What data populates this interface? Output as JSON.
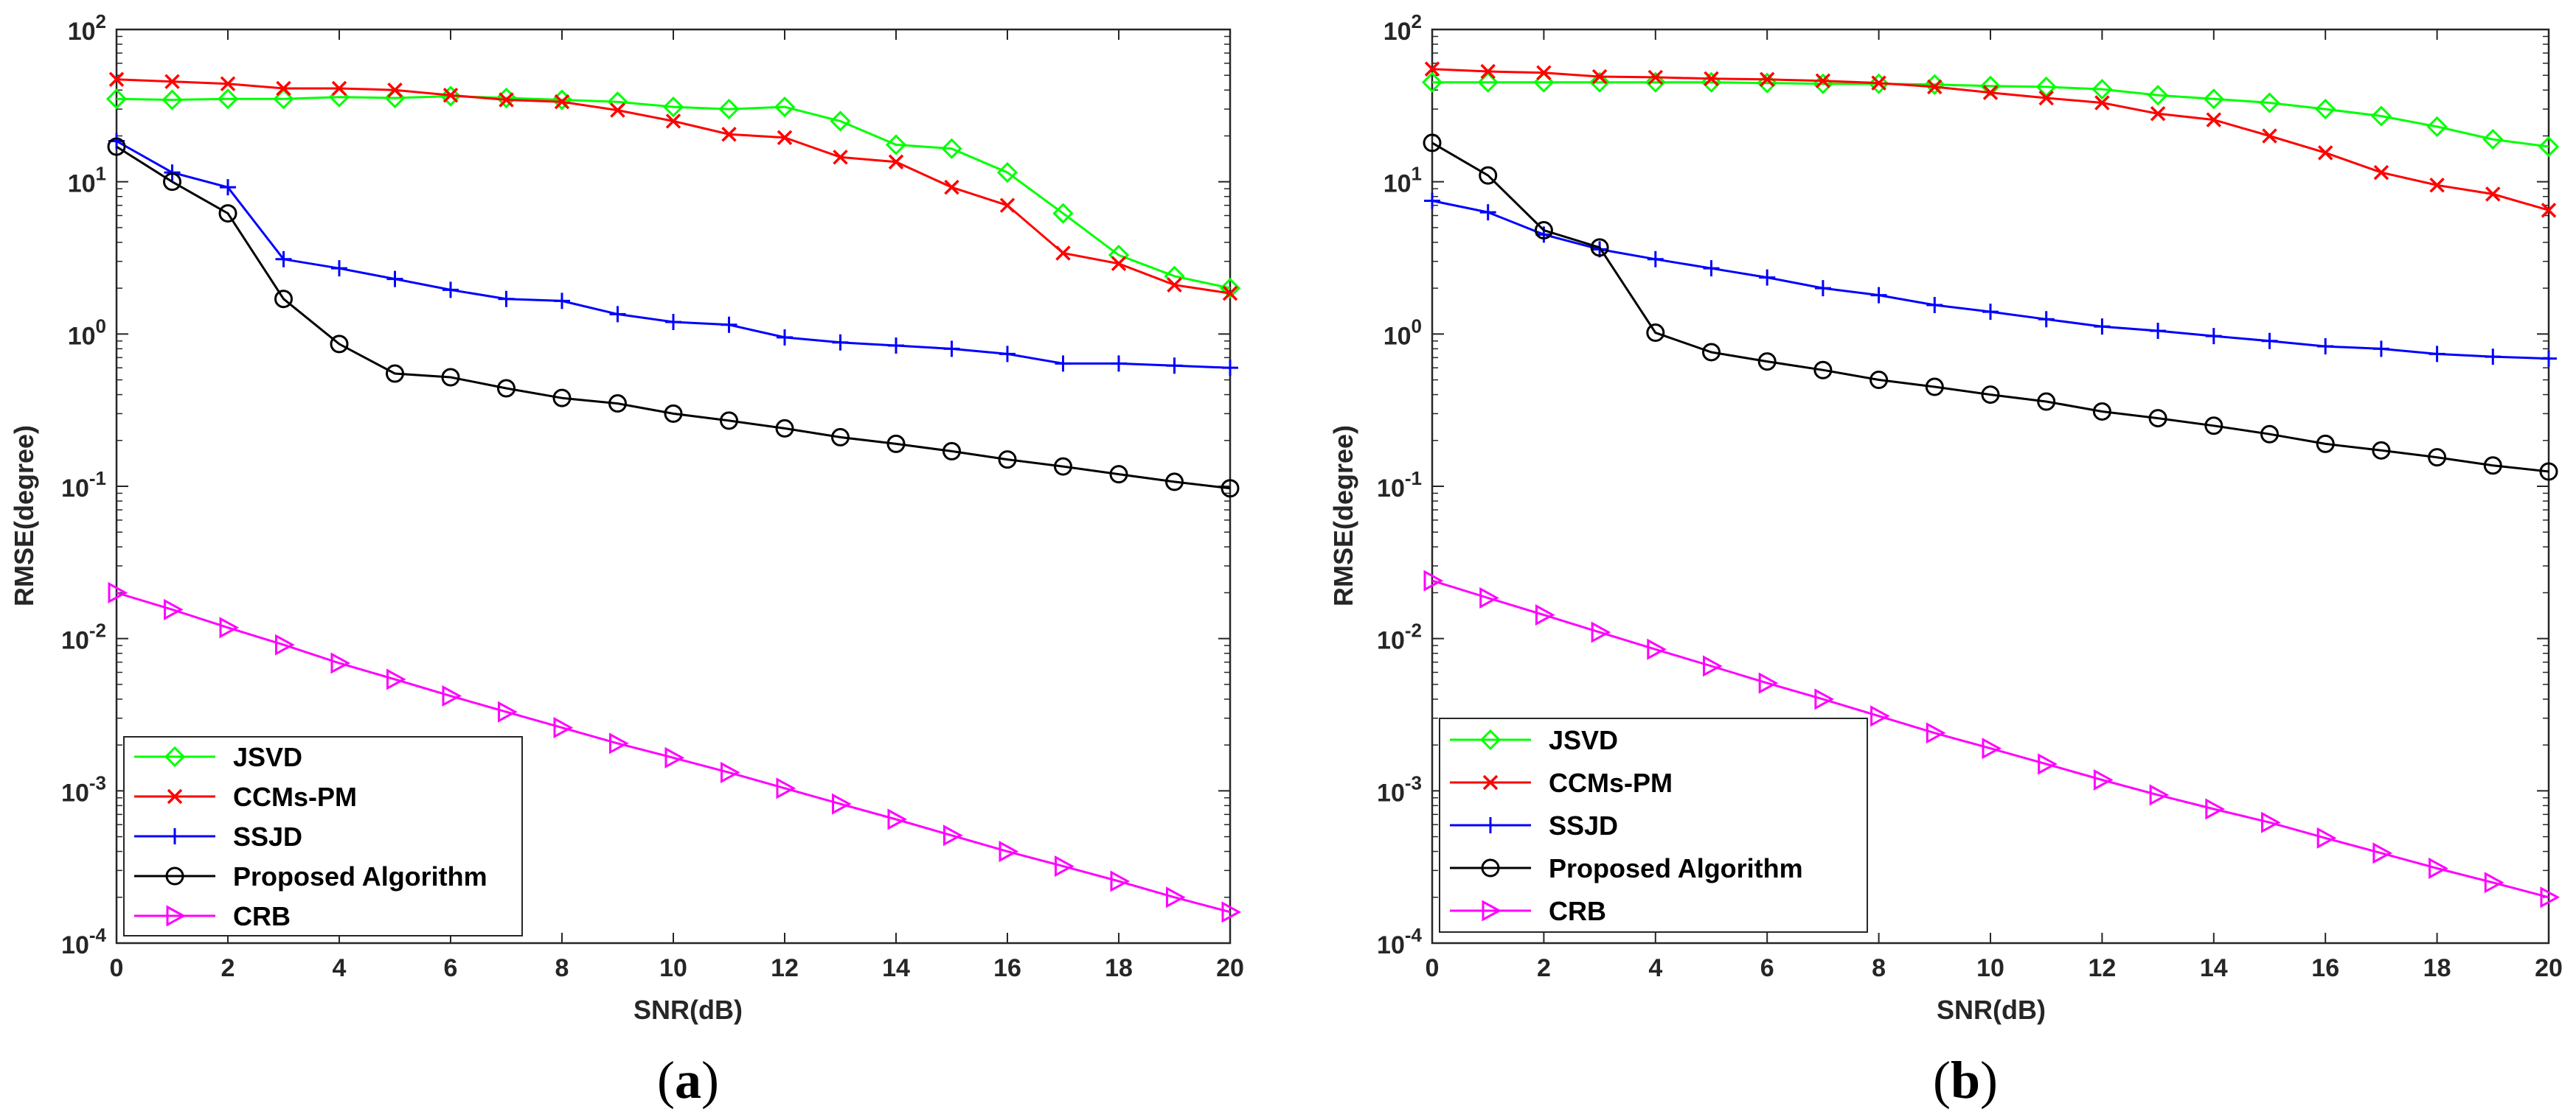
{
  "figure": {
    "panels": [
      "(a)",
      "(b)"
    ]
  },
  "chart_data": [
    {
      "type": "line",
      "panel_label": "a",
      "yscale": "log",
      "xlabel": "SNR(dB)",
      "ylabel": "RMSE(degree)",
      "xlim": [
        0,
        20
      ],
      "ylim": [
        0.0001,
        100
      ],
      "xticks": [
        "0",
        "2",
        "4",
        "6",
        "8",
        "10",
        "12",
        "14",
        "16",
        "18",
        "20"
      ],
      "yticks": [
        {
          "base": "10",
          "exp": "-4"
        },
        {
          "base": "10",
          "exp": "-3"
        },
        {
          "base": "10",
          "exp": "-2"
        },
        {
          "base": "10",
          "exp": "-1"
        },
        {
          "base": "10",
          "exp": "0"
        },
        {
          "base": "10",
          "exp": "1"
        },
        {
          "base": "10",
          "exp": "2"
        }
      ],
      "legend_position": "bottom-left",
      "x": [
        0,
        1,
        2,
        3,
        4,
        5,
        6,
        7,
        8,
        9,
        10,
        11,
        12,
        13,
        14,
        15,
        16,
        17,
        18,
        19,
        20
      ],
      "series": [
        {
          "name": "JSVD",
          "color": "#00ff00",
          "marker": "diamond",
          "values": [
            35,
            34.5,
            35,
            35,
            36,
            35.5,
            36.5,
            35.5,
            34.5,
            33.5,
            31,
            30,
            31,
            25,
            17.5,
            16.5,
            11.5,
            6.2,
            3.3,
            2.4,
            2.0
          ]
        },
        {
          "name": "CCMs-PM",
          "color": "#ff0000",
          "marker": "x",
          "values": [
            47,
            45.5,
            44,
            41,
            41,
            40,
            37,
            34.5,
            33.5,
            29.5,
            25,
            20.5,
            19.5,
            14.5,
            13.5,
            9.2,
            7.0,
            3.4,
            2.9,
            2.1,
            1.85
          ]
        },
        {
          "name": "SSJD",
          "color": "#0000ff",
          "marker": "plus",
          "values": [
            18.5,
            11.5,
            9.2,
            3.1,
            2.7,
            2.3,
            1.95,
            1.7,
            1.65,
            1.35,
            1.2,
            1.15,
            0.95,
            0.88,
            0.84,
            0.8,
            0.74,
            0.64,
            0.64,
            0.62,
            0.6
          ]
        },
        {
          "name": "Proposed Algorithm",
          "color": "#000000",
          "marker": "circle",
          "values": [
            17,
            10,
            6.2,
            1.7,
            0.86,
            0.55,
            0.52,
            0.44,
            0.38,
            0.35,
            0.3,
            0.27,
            0.24,
            0.21,
            0.19,
            0.17,
            0.15,
            0.135,
            0.12,
            0.107,
            0.097
          ]
        },
        {
          "name": "CRB",
          "color": "#ff00ff",
          "marker": "triangle-right",
          "values": [
            0.02,
            0.0155,
            0.0118,
            0.0091,
            0.0069,
            0.0054,
            0.0042,
            0.0033,
            0.0026,
            0.00205,
            0.00165,
            0.00132,
            0.00104,
            0.00082,
            0.00065,
            0.00051,
            0.0004,
            0.00032,
            0.000255,
            0.0002,
            0.00016
          ]
        }
      ]
    },
    {
      "type": "line",
      "panel_label": "b",
      "yscale": "log",
      "xlabel": "SNR(dB)",
      "ylabel": "RMSE(degree)",
      "xlim": [
        0,
        20
      ],
      "ylim": [
        0.0001,
        100
      ],
      "xticks": [
        "0",
        "2",
        "4",
        "6",
        "8",
        "10",
        "12",
        "14",
        "16",
        "18",
        "20"
      ],
      "yticks": [
        {
          "base": "10",
          "exp": "-4"
        },
        {
          "base": "10",
          "exp": "-3"
        },
        {
          "base": "10",
          "exp": "-2"
        },
        {
          "base": "10",
          "exp": "-1"
        },
        {
          "base": "10",
          "exp": "0"
        },
        {
          "base": "10",
          "exp": "1"
        },
        {
          "base": "10",
          "exp": "2"
        }
      ],
      "legend_position": "bottom-left",
      "x": [
        0,
        1,
        2,
        3,
        4,
        5,
        6,
        7,
        8,
        9,
        10,
        11,
        12,
        13,
        14,
        15,
        16,
        17,
        18,
        19,
        20
      ],
      "series": [
        {
          "name": "JSVD",
          "color": "#00ff00",
          "marker": "diamond",
          "values": [
            45,
            45,
            45,
            45,
            45,
            45,
            44.5,
            44,
            44,
            43.5,
            42.5,
            42,
            40.5,
            37,
            35,
            33,
            30,
            27,
            23,
            19,
            17
          ]
        },
        {
          "name": "CCMs-PM",
          "color": "#ff0000",
          "marker": "x",
          "values": [
            55,
            53,
            52,
            49,
            48.5,
            47.5,
            47,
            46,
            44.5,
            42,
            38.5,
            35.5,
            33,
            28,
            25.5,
            20,
            15.5,
            11.5,
            9.5,
            8.3,
            6.5
          ]
        },
        {
          "name": "SSJD",
          "color": "#0000ff",
          "marker": "plus",
          "values": [
            7.5,
            6.3,
            4.5,
            3.6,
            3.1,
            2.7,
            2.35,
            2.0,
            1.8,
            1.55,
            1.4,
            1.25,
            1.12,
            1.05,
            0.97,
            0.9,
            0.83,
            0.8,
            0.74,
            0.71,
            0.69
          ]
        },
        {
          "name": "Proposed Algorithm",
          "color": "#000000",
          "marker": "circle",
          "values": [
            18,
            11,
            4.8,
            3.7,
            1.02,
            0.76,
            0.66,
            0.58,
            0.5,
            0.45,
            0.4,
            0.36,
            0.31,
            0.28,
            0.25,
            0.22,
            0.19,
            0.172,
            0.155,
            0.137,
            0.125
          ]
        },
        {
          "name": "CRB",
          "color": "#ff00ff",
          "marker": "triangle-right",
          "values": [
            0.024,
            0.0185,
            0.0143,
            0.011,
            0.0085,
            0.0066,
            0.0051,
            0.004,
            0.0031,
            0.0024,
            0.0019,
            0.0015,
            0.00118,
            0.00094,
            0.00076,
            0.00062,
            0.00049,
            0.00039,
            0.00031,
            0.00025,
            0.0002
          ]
        }
      ]
    }
  ]
}
